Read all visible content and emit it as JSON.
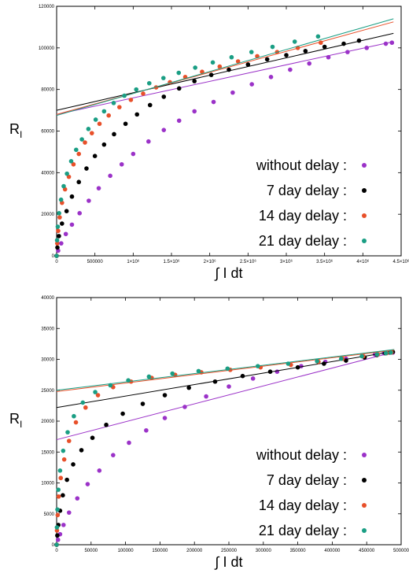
{
  "chart_data": [
    {
      "type": "scatter",
      "xlabel": "∫ I dt",
      "ylabel": "R_I",
      "xlim": [
        0,
        4500000
      ],
      "ylim": [
        0,
        120000
      ],
      "x_ticks": [
        {
          "value": 0,
          "label": "0"
        },
        {
          "value": 500000,
          "label": "500000"
        },
        {
          "value": 1000000,
          "label": "1×10⁶"
        },
        {
          "value": 1500000,
          "label": "1.5×10⁶"
        },
        {
          "value": 2000000,
          "label": "2×10⁶"
        },
        {
          "value": 2500000,
          "label": "2.5×10⁶"
        },
        {
          "value": 3000000,
          "label": "3×10⁶"
        },
        {
          "value": 3500000,
          "label": "3.5×10⁶"
        },
        {
          "value": 4000000,
          "label": "4×10⁶"
        },
        {
          "value": 4500000,
          "label": "4.5×10⁶"
        }
      ],
      "y_ticks": [
        "0",
        "20000",
        "40000",
        "60000",
        "80000",
        "100000",
        "120000"
      ],
      "y_tick_values": [
        0,
        20000,
        40000,
        60000,
        80000,
        100000,
        120000
      ],
      "grid": false,
      "legend_position": "bottom-right",
      "series": [
        {
          "name": "without delay :",
          "color": "#9b32c8",
          "x": [
            0,
            20000,
            60000,
            120000,
            200000,
            300000,
            420000,
            550000,
            700000,
            850000,
            1000000,
            1200000,
            1400000,
            1600000,
            1800000,
            2050000,
            2300000,
            2550000,
            2800000,
            3050000,
            3300000,
            3550000,
            3800000,
            4050000,
            4300000,
            4380000
          ],
          "y": [
            0,
            2500,
            6000,
            10500,
            15000,
            20500,
            26500,
            32500,
            38500,
            44000,
            49000,
            55000,
            60500,
            65000,
            69500,
            74000,
            78500,
            82500,
            86000,
            89500,
            92500,
            95500,
            98000,
            100000,
            102000,
            102500
          ],
          "fit": {
            "x": [
              0,
              4400000
            ],
            "y": [
              68000,
              103000
            ]
          }
        },
        {
          "name": "7 day delay :",
          "color": "#000000",
          "x": [
            0,
            10000,
            30000,
            70000,
            130000,
            200000,
            290000,
            390000,
            500000,
            620000,
            750000,
            900000,
            1050000,
            1220000,
            1400000,
            1600000,
            1800000,
            2020000,
            2250000,
            2500000,
            2750000,
            3000000,
            3250000,
            3500000,
            3750000,
            3950000
          ],
          "y": [
            0,
            4000,
            9500,
            15500,
            21500,
            28500,
            35500,
            42000,
            48000,
            53500,
            58500,
            63500,
            68000,
            72500,
            76500,
            80500,
            84000,
            87000,
            89500,
            92000,
            94500,
            96500,
            98500,
            100500,
            102000,
            103500
          ],
          "fit": {
            "x": [
              0,
              4400000
            ],
            "y": [
              70000,
              107000
            ]
          }
        },
        {
          "name": "14 day delay :",
          "color": "#e8502a",
          "x": [
            0,
            8000,
            20000,
            40000,
            70000,
            110000,
            160000,
            220000,
            290000,
            370000,
            460000,
            560000,
            680000,
            820000,
            970000,
            1130000,
            1300000,
            1480000,
            1680000,
            1900000,
            2130000,
            2370000,
            2620000,
            2880000,
            3150000,
            3450000
          ],
          "y": [
            0,
            6000,
            12000,
            18500,
            25500,
            32000,
            38000,
            44000,
            49000,
            54500,
            59000,
            63500,
            67500,
            71500,
            75000,
            78000,
            81000,
            83500,
            86000,
            88500,
            91000,
            93500,
            96000,
            98000,
            100000,
            102500
          ],
          "fit": {
            "x": [
              0,
              4400000
            ],
            "y": [
              68000,
              112500
            ]
          }
        },
        {
          "name": "21 day delay :",
          "color": "#1a9e84",
          "x": [
            0,
            6000,
            15000,
            32000,
            58000,
            92000,
            135000,
            190000,
            255000,
            330000,
            415000,
            510000,
            620000,
            745000,
            885000,
            1040000,
            1210000,
            1395000,
            1595000,
            1810000,
            2040000,
            2285000,
            2545000,
            2820000,
            3110000,
            3415000
          ],
          "y": [
            0,
            7500,
            14000,
            20500,
            27000,
            33500,
            39500,
            45500,
            51000,
            56000,
            61000,
            65500,
            69500,
            73500,
            77000,
            80000,
            83000,
            85500,
            88000,
            90500,
            93000,
            95500,
            98000,
            100500,
            103000,
            105500
          ],
          "fit": {
            "x": [
              0,
              4400000
            ],
            "y": [
              67500,
              114000
            ]
          }
        }
      ]
    },
    {
      "type": "scatter",
      "xlabel": "∫ I dt",
      "ylabel": "R_I",
      "xlim": [
        0,
        500000
      ],
      "ylim": [
        0,
        40000
      ],
      "x_ticks": [
        {
          "value": 0,
          "label": "0"
        },
        {
          "value": 50000,
          "label": "50000"
        },
        {
          "value": 100000,
          "label": "100000"
        },
        {
          "value": 150000,
          "label": "150000"
        },
        {
          "value": 200000,
          "label": "200000"
        },
        {
          "value": 250000,
          "label": "250000"
        },
        {
          "value": 300000,
          "label": "300000"
        },
        {
          "value": 350000,
          "label": "350000"
        },
        {
          "value": 400000,
          "label": "400000"
        },
        {
          "value": 450000,
          "label": "450000"
        },
        {
          "value": 500000,
          "label": "500000"
        }
      ],
      "y_ticks": [
        "0",
        "5000",
        "10000",
        "15000",
        "20000",
        "25000",
        "30000",
        "35000",
        "40000"
      ],
      "y_tick_values": [
        0,
        5000,
        10000,
        15000,
        20000,
        25000,
        30000,
        35000,
        40000
      ],
      "grid": false,
      "legend_position": "bottom-right",
      "series": [
        {
          "name": "without delay :",
          "color": "#9b32c8",
          "x": [
            0,
            2000,
            5000,
            10000,
            18000,
            30000,
            45000,
            62000,
            82000,
            105000,
            130000,
            157000,
            186000,
            217000,
            250000,
            285000,
            320000,
            355000,
            390000,
            420000,
            445000,
            462000,
            475000,
            483000,
            488000
          ],
          "y": [
            0,
            800,
            1700,
            3200,
            5200,
            7500,
            9800,
            12000,
            14500,
            16500,
            18500,
            20500,
            22300,
            24000,
            25600,
            26900,
            28000,
            28900,
            29600,
            30100,
            30500,
            30800,
            31000,
            31100,
            31100
          ],
          "fit": {
            "x": [
              0,
              490000
            ],
            "y": [
              17000,
              31200
            ]
          }
        },
        {
          "name": "7 day delay :",
          "color": "#000000",
          "x": [
            0,
            1000,
            2500,
            5000,
            9000,
            15000,
            24000,
            36000,
            52000,
            72000,
            96000,
            125000,
            157000,
            192000,
            230000,
            270000,
            310000,
            350000,
            388000,
            420000,
            447000,
            465000,
            477000,
            484000,
            488000
          ],
          "y": [
            0,
            1500,
            3200,
            5500,
            8000,
            10500,
            13000,
            15300,
            17300,
            19400,
            21200,
            22800,
            24200,
            25400,
            26400,
            27300,
            28000,
            28700,
            29300,
            29800,
            30300,
            30700,
            31000,
            31100,
            31200
          ],
          "fit": {
            "x": [
              0,
              490000
            ],
            "y": [
              22200,
              31300
            ]
          }
        },
        {
          "name": "14 day delay :",
          "color": "#e8502a",
          "x": [
            0,
            500,
            1500,
            3000,
            6000,
            11000,
            18000,
            28000,
            42000,
            60000,
            82000,
            108000,
            138000,
            172000,
            210000,
            252000,
            296000,
            340000,
            380000,
            415000,
            445000,
            466000,
            479000,
            486000
          ],
          "y": [
            0,
            2300,
            4800,
            7800,
            10800,
            13800,
            16800,
            19800,
            22200,
            24200,
            25500,
            26400,
            27000,
            27500,
            27900,
            28300,
            28700,
            29100,
            29600,
            30100,
            30500,
            30800,
            31000,
            31100
          ],
          "fit": {
            "x": [
              0,
              490000
            ],
            "y": [
              24800,
              31500
            ]
          }
        },
        {
          "name": "21 day delay :",
          "color": "#1a9e84",
          "x": [
            0,
            400,
            1200,
            2500,
            5000,
            9500,
            16000,
            25000,
            38000,
            56000,
            78000,
            104000,
            134000,
            168000,
            206000,
            248000,
            292000,
            336000,
            378000,
            413000,
            443000,
            465000,
            478000,
            485000
          ],
          "y": [
            0,
            2800,
            5700,
            8900,
            12000,
            15200,
            18200,
            20800,
            23000,
            24700,
            25800,
            26600,
            27200,
            27700,
            28100,
            28500,
            28900,
            29300,
            29700,
            30100,
            30500,
            30800,
            31000,
            31100
          ],
          "fit": {
            "x": [
              0,
              490000
            ],
            "y": [
              25000,
              31600
            ]
          }
        }
      ]
    }
  ]
}
